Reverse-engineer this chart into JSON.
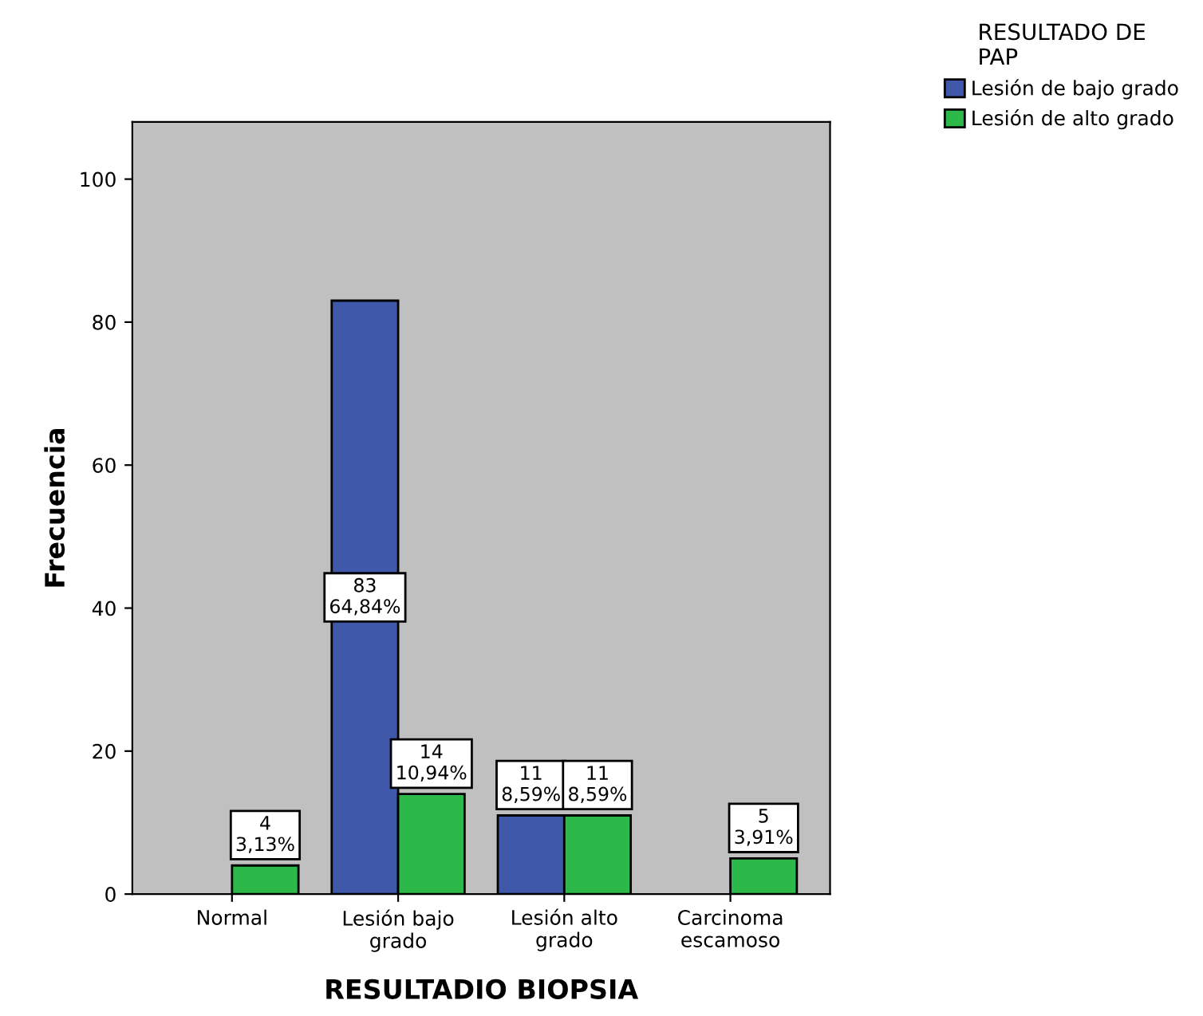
{
  "chart_data": {
    "type": "bar",
    "xlabel": "RESULTADIO BIOPSIA",
    "ylabel": "Frecuencia",
    "legend_title": "RESULTADO DE\nPAP",
    "categories": [
      "Normal",
      "Lesión bajo\ngrado",
      "Lesión alto\ngrado",
      "Carcinoma\nescamoso"
    ],
    "series": [
      {
        "name": "Lesión de bajo grado",
        "color": "#3f58aa",
        "values": [
          null,
          83,
          11,
          null
        ],
        "value_labels": [
          null,
          "83\n64,84%",
          "11\n8,59%",
          null
        ]
      },
      {
        "name": "Lesión de alto grado",
        "color": "#2db84a",
        "values": [
          4,
          14,
          11,
          5
        ],
        "value_labels": [
          "4\n3,13%",
          "14\n10,94%",
          "11\n8,59%",
          "5\n3,91%"
        ]
      }
    ],
    "ylim": [
      0,
      108
    ],
    "yticks": [
      0,
      20,
      40,
      60,
      80,
      100
    ],
    "grid": false,
    "legend": "top right"
  }
}
